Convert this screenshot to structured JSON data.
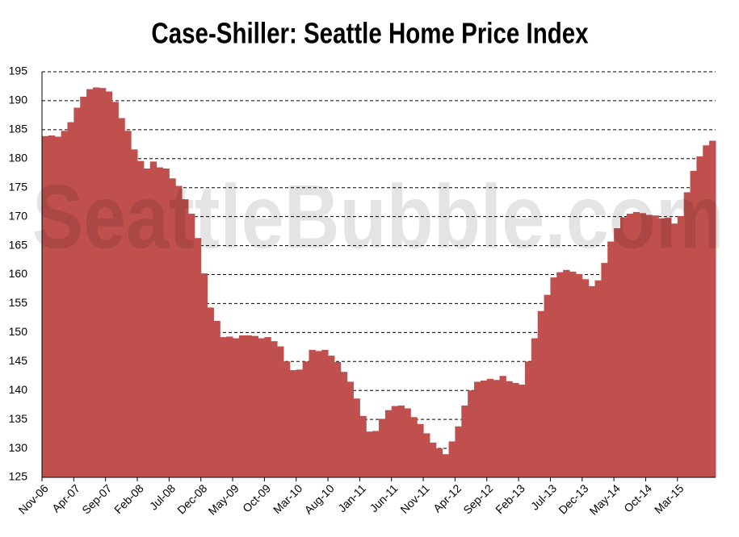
{
  "chart_data": {
    "type": "bar",
    "title": "Case-Shiller: Seattle Home Price Index",
    "watermark": "SeattleBubble.com",
    "categories": [
      "Nov-06",
      null,
      null,
      null,
      null,
      "Apr-07",
      null,
      null,
      null,
      null,
      "Sep-07",
      null,
      null,
      null,
      null,
      "Feb-08",
      null,
      null,
      null,
      null,
      "Jul-08",
      null,
      null,
      null,
      null,
      "Dec-08",
      null,
      null,
      null,
      null,
      "May-09",
      null,
      null,
      null,
      null,
      "Oct-09",
      null,
      null,
      null,
      null,
      "Mar-10",
      null,
      null,
      null,
      null,
      "Aug-10",
      null,
      null,
      null,
      null,
      "Jan-11",
      null,
      null,
      null,
      null,
      "Jun-11",
      null,
      null,
      null,
      null,
      "Nov-11",
      null,
      null,
      null,
      null,
      "Apr-12",
      null,
      null,
      null,
      null,
      "Sep-12",
      null,
      null,
      null,
      null,
      "Feb-13",
      null,
      null,
      null,
      null,
      "Jul-13",
      null,
      null,
      null,
      null,
      "Dec-13",
      null,
      null,
      null,
      null,
      "May-14",
      null,
      null,
      null,
      null,
      "Oct-14",
      null,
      null,
      null,
      null,
      "Mar-15",
      null,
      null,
      null,
      null,
      null
    ],
    "values": [
      183.9,
      184,
      183.8,
      184.8,
      186.3,
      188.8,
      190.7,
      192,
      192.3,
      192.2,
      191.6,
      189.8,
      187,
      184.8,
      181.6,
      179.6,
      178.3,
      179.5,
      178.5,
      178.3,
      176.6,
      175.3,
      173,
      170.5,
      166.3,
      160.2,
      154.3,
      152,
      149.2,
      149.3,
      149,
      149.5,
      149.5,
      149.4,
      149,
      149.2,
      148.5,
      147.6,
      145,
      143.5,
      143.6,
      145,
      147,
      146.8,
      147,
      146,
      144.9,
      143.2,
      141.5,
      138.6,
      135.6,
      132.9,
      133,
      135.1,
      136.6,
      137.3,
      137.4,
      136.9,
      135.4,
      134.2,
      132.6,
      131,
      130,
      129,
      131.2,
      133.8,
      137.4,
      140,
      141.5,
      141.7,
      142,
      141.8,
      142.5,
      141.6,
      141.3,
      141,
      145,
      149,
      153.7,
      156.5,
      159.5,
      160.4,
      160.8,
      160.5,
      160.1,
      159.2,
      158,
      159,
      162,
      165.7,
      168,
      169.9,
      170.5,
      170.8,
      170.6,
      170.3,
      170.2,
      169.7,
      169.8,
      168.8,
      170.1,
      174.2,
      177.9,
      180.4,
      182.3,
      183.1
    ],
    "color": "#c0504d",
    "ylim": [
      125,
      195
    ],
    "yticks": [
      125,
      130,
      135,
      140,
      145,
      150,
      155,
      160,
      165,
      170,
      175,
      180,
      185,
      190,
      195
    ],
    "grid": true
  }
}
